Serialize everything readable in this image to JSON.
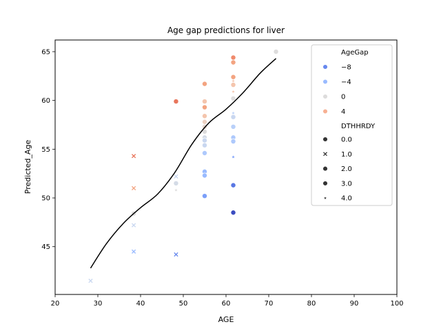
{
  "chart_data": {
    "type": "scatter",
    "title": "Age gap predictions for liver",
    "xlabel": "AGE",
    "ylabel": "Predicted_Age",
    "xlim": [
      20,
      100
    ],
    "ylim": [
      40.1,
      66.2
    ],
    "xticks": [
      20,
      30,
      40,
      50,
      60,
      70,
      80,
      90,
      100
    ],
    "yticks": [
      45,
      50,
      55,
      60,
      65
    ],
    "grid": false,
    "legend_position": "top-right",
    "hue_legend": {
      "title": "AgeGap",
      "entries": [
        {
          "label": "−8",
          "color": "#6788ee"
        },
        {
          "label": "−4",
          "color": "#9abbff"
        },
        {
          "label": "0",
          "color": "#dddcdc"
        },
        {
          "label": "4",
          "color": "#f7b093"
        }
      ]
    },
    "style_legend": {
      "title": "DTHHRDY",
      "entries": [
        {
          "label": "0.0",
          "marker": "circle"
        },
        {
          "label": "1.0",
          "marker": "x"
        },
        {
          "label": "2.0",
          "marker": "circle"
        },
        {
          "label": "3.0",
          "marker": "circle"
        },
        {
          "label": "4.0",
          "marker": "star"
        }
      ]
    },
    "points": [
      {
        "x": 28.3,
        "y": 41.5,
        "marker": "x",
        "color": "#c9d7f0"
      },
      {
        "x": 38.4,
        "y": 54.3,
        "marker": "x",
        "color": "#e8765c"
      },
      {
        "x": 38.4,
        "y": 51.0,
        "marker": "x",
        "color": "#f3a481"
      },
      {
        "x": 38.4,
        "y": 48.4,
        "marker": "circle",
        "color": "#dddcdc"
      },
      {
        "x": 38.4,
        "y": 47.2,
        "marker": "x",
        "color": "#c9d7f0"
      },
      {
        "x": 38.4,
        "y": 44.5,
        "marker": "x",
        "color": "#9abbff"
      },
      {
        "x": 48.3,
        "y": 59.9,
        "marker": "circle",
        "color": "#e8765c"
      },
      {
        "x": 48.3,
        "y": 52.2,
        "marker": "x",
        "color": "#c9d7f0"
      },
      {
        "x": 48.3,
        "y": 51.5,
        "marker": "circle",
        "color": "#d4dbe6"
      },
      {
        "x": 48.3,
        "y": 50.8,
        "marker": "star",
        "color": "#dddcdc"
      },
      {
        "x": 48.3,
        "y": 44.2,
        "marker": "x",
        "color": "#6788ee"
      },
      {
        "x": 55.0,
        "y": 61.7,
        "marker": "circle",
        "color": "#f3a481"
      },
      {
        "x": 55.0,
        "y": 59.9,
        "marker": "circle",
        "color": "#f4c5ad"
      },
      {
        "x": 55.0,
        "y": 59.3,
        "marker": "circle",
        "color": "#f3a481"
      },
      {
        "x": 55.0,
        "y": 58.4,
        "marker": "circle",
        "color": "#f4c5ad"
      },
      {
        "x": 55.0,
        "y": 57.8,
        "marker": "circle",
        "color": "#edd1c2"
      },
      {
        "x": 55.0,
        "y": 57.3,
        "marker": "circle",
        "color": "#e6d7cf"
      },
      {
        "x": 55.0,
        "y": 56.8,
        "marker": "circle",
        "color": "#dddcdc"
      },
      {
        "x": 55.0,
        "y": 56.2,
        "marker": "circle",
        "color": "#d4dbe6"
      },
      {
        "x": 55.0,
        "y": 55.9,
        "marker": "circle",
        "color": "#c9d7f0"
      },
      {
        "x": 55.0,
        "y": 55.4,
        "marker": "circle",
        "color": "#c9d7f0"
      },
      {
        "x": 55.0,
        "y": 54.6,
        "marker": "circle",
        "color": "#aec9fc"
      },
      {
        "x": 55.0,
        "y": 52.7,
        "marker": "circle",
        "color": "#9abbff"
      },
      {
        "x": 55.0,
        "y": 52.3,
        "marker": "circle",
        "color": "#9abbff"
      },
      {
        "x": 55.0,
        "y": 50.2,
        "marker": "circle",
        "color": "#7b9ff9"
      },
      {
        "x": 61.7,
        "y": 64.4,
        "marker": "circle",
        "color": "#f08a6c"
      },
      {
        "x": 61.7,
        "y": 63.9,
        "marker": "circle",
        "color": "#f3a481"
      },
      {
        "x": 61.7,
        "y": 62.4,
        "marker": "circle",
        "color": "#f3a481"
      },
      {
        "x": 61.7,
        "y": 62.0,
        "marker": "star",
        "color": "#f4c5ad"
      },
      {
        "x": 61.7,
        "y": 61.6,
        "marker": "circle",
        "color": "#f4c5ad"
      },
      {
        "x": 61.7,
        "y": 60.9,
        "marker": "star",
        "color": "#f4c5ad"
      },
      {
        "x": 61.7,
        "y": 60.2,
        "marker": "circle",
        "color": "#dddcdc"
      },
      {
        "x": 61.7,
        "y": 58.7,
        "marker": "star",
        "color": "#b9d0f9"
      },
      {
        "x": 61.7,
        "y": 58.3,
        "marker": "circle",
        "color": "#c9d7f0"
      },
      {
        "x": 61.7,
        "y": 57.3,
        "marker": "circle",
        "color": "#b9d0f9"
      },
      {
        "x": 61.7,
        "y": 56.2,
        "marker": "circle",
        "color": "#aec9fc"
      },
      {
        "x": 61.7,
        "y": 55.8,
        "marker": "circle",
        "color": "#aec9fc"
      },
      {
        "x": 61.7,
        "y": 54.2,
        "marker": "star",
        "color": "#7b9ff9"
      },
      {
        "x": 61.7,
        "y": 51.3,
        "marker": "circle",
        "color": "#5977e3"
      },
      {
        "x": 61.7,
        "y": 48.5,
        "marker": "circle",
        "color": "#3b4cc0"
      },
      {
        "x": 71.7,
        "y": 65.0,
        "marker": "circle",
        "color": "#dddcdc"
      }
    ],
    "trend_line": {
      "color": "#000000",
      "x": [
        28.3,
        32,
        36,
        40,
        44,
        48,
        52,
        56,
        60,
        64,
        68,
        71.7
      ],
      "y": [
        42.8,
        45.3,
        47.4,
        49.0,
        50.4,
        52.6,
        55.5,
        57.7,
        59.1,
        60.8,
        62.8,
        64.3
      ]
    }
  }
}
